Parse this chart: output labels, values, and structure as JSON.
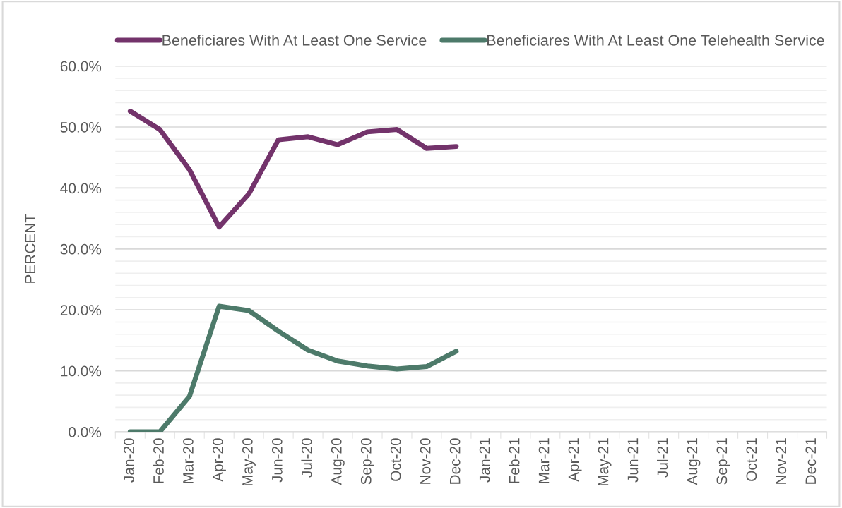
{
  "chart_data": {
    "type": "line",
    "ylabel": "PERCENT",
    "categories": [
      "Jan-20",
      "Feb-20",
      "Mar-20",
      "Apr-20",
      "May-20",
      "Jun-20",
      "Jul-20",
      "Aug-20",
      "Sep-20",
      "Oct-20",
      "Nov-20",
      "Dec-20",
      "Jan-21",
      "Feb-21",
      "Mar-21",
      "Apr-21",
      "May-21",
      "Jun-21",
      "Jul-21",
      "Aug-21",
      "Sep-21",
      "Oct-21",
      "Nov-21",
      "Dec-21"
    ],
    "series": [
      {
        "name": "Beneficiares With At Least One Service",
        "color": "#73336b",
        "values": [
          52.6,
          49.6,
          43.0,
          33.6,
          39.0,
          47.9,
          48.4,
          47.1,
          49.2,
          49.6,
          46.5,
          46.8,
          null,
          null,
          null,
          null,
          null,
          null,
          null,
          null,
          null,
          null,
          null,
          null
        ]
      },
      {
        "name": "Beneficiares With At Least One Telehealth Service",
        "color": "#4d7a6a",
        "values": [
          0.0,
          0.0,
          5.8,
          20.6,
          19.9,
          16.5,
          13.4,
          11.6,
          10.8,
          10.3,
          10.7,
          13.2,
          null,
          null,
          null,
          null,
          null,
          null,
          null,
          null,
          null,
          null,
          null,
          null
        ]
      }
    ],
    "ylim": [
      0,
      60
    ],
    "yticks": [
      {
        "value": 0,
        "label": "0.0%"
      },
      {
        "value": 2,
        "label": null
      },
      {
        "value": 4,
        "label": null
      },
      {
        "value": 6,
        "label": null
      },
      {
        "value": 8,
        "label": null
      },
      {
        "value": 10,
        "label": "10.0%"
      },
      {
        "value": 12,
        "label": null
      },
      {
        "value": 14,
        "label": null
      },
      {
        "value": 16,
        "label": null
      },
      {
        "value": 18,
        "label": null
      },
      {
        "value": 20,
        "label": "20.0%"
      },
      {
        "value": 22,
        "label": null
      },
      {
        "value": 24,
        "label": null
      },
      {
        "value": 26,
        "label": null
      },
      {
        "value": 28,
        "label": null
      },
      {
        "value": 30,
        "label": "30.0%"
      },
      {
        "value": 32,
        "label": null
      },
      {
        "value": 34,
        "label": null
      },
      {
        "value": 36,
        "label": null
      },
      {
        "value": 38,
        "label": null
      },
      {
        "value": 40,
        "label": "40.0%"
      },
      {
        "value": 42,
        "label": null
      },
      {
        "value": 44,
        "label": null
      },
      {
        "value": 46,
        "label": null
      },
      {
        "value": 48,
        "label": null
      },
      {
        "value": 50,
        "label": "50.0%"
      },
      {
        "value": 52,
        "label": null
      },
      {
        "value": 54,
        "label": null
      },
      {
        "value": 56,
        "label": null
      },
      {
        "value": 58,
        "label": null
      },
      {
        "value": 60,
        "label": "60.0%"
      }
    ],
    "grid": "y",
    "legend": "top",
    "marker": "none",
    "line_style": "solid"
  }
}
